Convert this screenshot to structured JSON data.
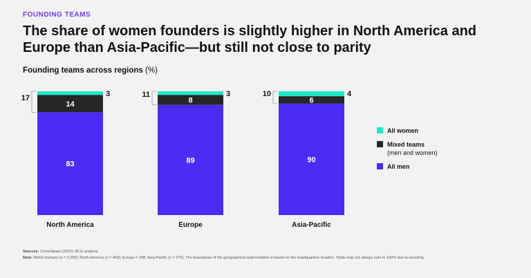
{
  "eyebrow": "FOUNDING TEAMS",
  "title": "The share of women founders is slightly higher in North America and Europe than Asia-Pacific—but still not close to parity",
  "subtitle": "Founding teams across regions",
  "subtitle_unit": "(%)",
  "colors": {
    "all_women": "#1de9c8",
    "mixed": "#262626",
    "all_men": "#4b2cf5",
    "brand": "#6a3ff0"
  },
  "legend": {
    "all_women": "All women",
    "mixed": "Mixed teams",
    "mixed_sub": "(men and women)",
    "all_men": "All men"
  },
  "chart_data": {
    "type": "bar",
    "stacked": true,
    "categories": [
      "North America",
      "Europe",
      "Asia-Pacific"
    ],
    "series": [
      {
        "name": "All men",
        "values": [
          83,
          89,
          90
        ]
      },
      {
        "name": "Mixed teams (men and women)",
        "values": [
          14,
          8,
          6
        ]
      },
      {
        "name": "All women",
        "values": [
          3,
          3,
          4
        ]
      }
    ],
    "totals_non_men": [
      17,
      11,
      10
    ],
    "ylim": [
      0,
      100
    ],
    "legend_position": "right"
  },
  "footer": {
    "sources_label": "Sources:",
    "sources": "Crunchbase (2022); BCG analysis.",
    "note_label": "Note:",
    "note": "Web3 startups (n = 2,190); North America (n = 463); Europe = 298; Asia-Pacific (n = 279). The boundaries of the geographical segmentation is based on the headquarters location. Totals may not always sum to 100% due to rounding."
  }
}
